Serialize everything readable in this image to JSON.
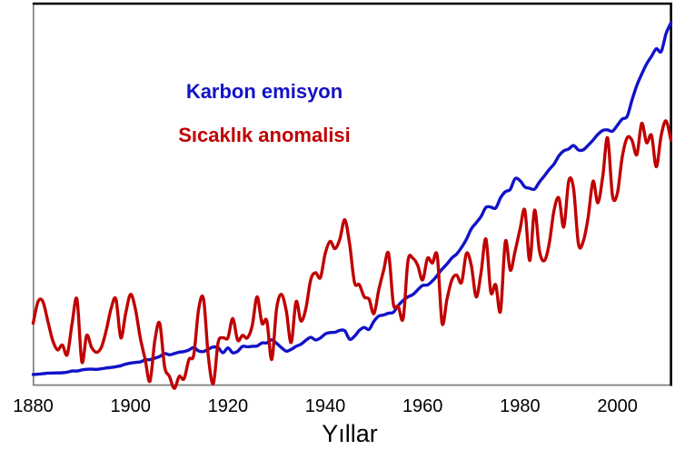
{
  "chart_data": {
    "type": "line",
    "title": "",
    "xlabel": "Yıllar",
    "ylabel": "",
    "grid": false,
    "legend_position": "inside-upper-left",
    "x_range": [
      1880,
      2011
    ],
    "x_ticks": [
      1880,
      1900,
      1920,
      1940,
      1960,
      1980,
      2000
    ],
    "series": [
      {
        "name": "Karbon emisyon",
        "color": "#1212C8",
        "unit": "million metric tons C",
        "axis_range": [
          -40,
          9930
        ],
        "values": [
          236,
          243,
          256,
          272,
          275,
          277,
          281,
          295,
          327,
          327,
          356,
          372,
          374,
          370,
          383,
          406,
          419,
          440,
          465,
          507,
          534,
          552,
          566,
          617,
          624,
          663,
          707,
          784,
          750,
          785,
          819,
          836,
          879,
          943,
          850,
          838,
          901,
          955,
          936,
          806,
          932,
          803,
          845,
          970,
          963,
          975,
          983,
          1062,
          1065,
          1145,
          1053,
          940,
          847,
          893,
          973,
          1027,
          1130,
          1209,
          1142,
          1192,
          1299,
          1334,
          1342,
          1391,
          1383,
          1160,
          1238,
          1392,
          1469,
          1419,
          1630,
          1767,
          1795,
          1841,
          1865,
          2042,
          2177,
          2270,
          2330,
          2454,
          2569,
          2580,
          2686,
          2833,
          2995,
          3130,
          3288,
          3393,
          3566,
          3780,
          4053,
          4208,
          4376,
          4614,
          4623,
          4596,
          4864,
          5026,
          5087,
          5369,
          5315,
          5152,
          5113,
          5094,
          5280,
          5439,
          5607,
          5752,
          5965,
          6096,
          6144,
          6236,
          6118,
          6124,
          6242,
          6377,
          6528,
          6634,
          6644,
          6611,
          6766,
          6929,
          6998,
          7421,
          7812,
          8106,
          8372,
          8572,
          8769,
          8700,
          9167,
          9449
        ]
      },
      {
        "name": "Sıcaklık anomalisi",
        "color": "#C00000",
        "unit": "°C",
        "axis_range": [
          -0.466,
          1.113
        ],
        "values": [
          -0.21,
          -0.12,
          -0.12,
          -0.2,
          -0.28,
          -0.32,
          -0.3,
          -0.34,
          -0.21,
          -0.11,
          -0.37,
          -0.26,
          -0.31,
          -0.33,
          -0.31,
          -0.24,
          -0.15,
          -0.11,
          -0.27,
          -0.17,
          -0.09,
          -0.15,
          -0.27,
          -0.36,
          -0.45,
          -0.28,
          -0.21,
          -0.39,
          -0.43,
          -0.48,
          -0.43,
          -0.44,
          -0.36,
          -0.34,
          -0.15,
          -0.11,
          -0.35,
          -0.46,
          -0.29,
          -0.27,
          -0.27,
          -0.19,
          -0.28,
          -0.26,
          -0.27,
          -0.22,
          -0.1,
          -0.21,
          -0.2,
          -0.36,
          -0.15,
          -0.09,
          -0.16,
          -0.29,
          -0.12,
          -0.2,
          -0.15,
          -0.03,
          0.0,
          -0.02,
          0.08,
          0.13,
          0.1,
          0.14,
          0.22,
          0.12,
          -0.04,
          -0.05,
          -0.1,
          -0.11,
          -0.17,
          -0.07,
          0.01,
          0.08,
          -0.13,
          -0.14,
          -0.19,
          0.05,
          0.06,
          0.03,
          -0.03,
          0.06,
          0.04,
          0.07,
          -0.21,
          -0.11,
          -0.03,
          -0.01,
          -0.04,
          0.08,
          0.03,
          -0.1,
          0.0,
          0.14,
          -0.08,
          -0.05,
          -0.16,
          0.13,
          0.01,
          0.09,
          0.18,
          0.26,
          0.05,
          0.26,
          0.09,
          0.05,
          0.12,
          0.26,
          0.31,
          0.19,
          0.38,
          0.35,
          0.12,
          0.13,
          0.23,
          0.38,
          0.29,
          0.4,
          0.56,
          0.32,
          0.33,
          0.48,
          0.56,
          0.55,
          0.49,
          0.62,
          0.54,
          0.57,
          0.44,
          0.57,
          0.63,
          0.55
        ]
      }
    ]
  }
}
